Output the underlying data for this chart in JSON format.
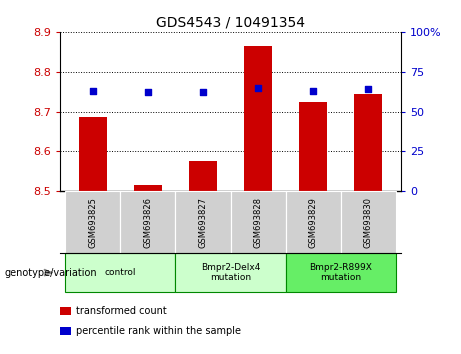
{
  "title": "GDS4543 / 10491354",
  "samples": [
    "GSM693825",
    "GSM693826",
    "GSM693827",
    "GSM693828",
    "GSM693829",
    "GSM693830"
  ],
  "bar_values": [
    8.685,
    8.515,
    8.575,
    8.865,
    8.725,
    8.745
  ],
  "percentile_values": [
    63,
    62,
    62,
    65,
    63,
    64
  ],
  "ylim_left": [
    8.5,
    8.9
  ],
  "ylim_right": [
    0,
    100
  ],
  "yticks_left": [
    8.5,
    8.6,
    8.7,
    8.8,
    8.9
  ],
  "yticks_right": [
    0,
    25,
    50,
    75,
    100
  ],
  "ytick_labels_right": [
    "0",
    "25",
    "50",
    "75",
    "100%"
  ],
  "bar_color": "#cc0000",
  "dot_color": "#0000cc",
  "bar_bottom": 8.5,
  "group_ranges": [
    [
      0,
      1
    ],
    [
      2,
      3
    ],
    [
      4,
      5
    ]
  ],
  "group_labels": [
    "control",
    "Bmpr2-Delx4\nmutation",
    "Bmpr2-R899X\nmutation"
  ],
  "group_colors": [
    "#ccffcc",
    "#ccffcc",
    "#66ee66"
  ],
  "group_label_prefix": "genotype/variation",
  "legend_items": [
    {
      "color": "#cc0000",
      "label": "transformed count"
    },
    {
      "color": "#0000cc",
      "label": "percentile rank within the sample"
    }
  ],
  "tick_color_left": "#cc0000",
  "tick_color_right": "#0000cc",
  "sample_box_color": "#d0d0d0",
  "plot_bg": "#ffffff"
}
